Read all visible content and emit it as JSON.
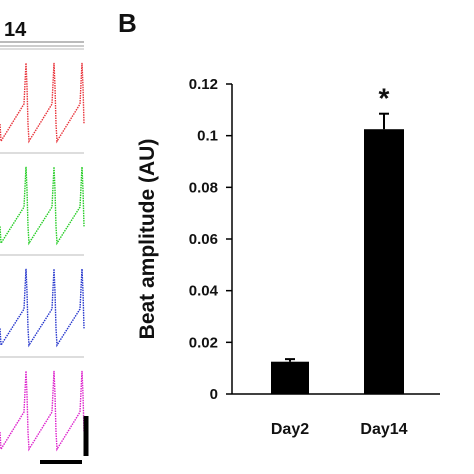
{
  "left_panel": {
    "title_fragment": "14",
    "trace_colors": [
      "#e8333a",
      "#22cc22",
      "#2233cc",
      "#dd22cc"
    ]
  },
  "panel_label": "B",
  "chart_data": {
    "type": "bar",
    "categories": [
      "Day2",
      "Day14"
    ],
    "values": [
      0.0125,
      0.1025
    ],
    "errors": [
      0.001,
      0.006
    ],
    "ylabel": "Beat amplitude (AU)",
    "xlabel": "",
    "ylim": [
      0,
      0.12
    ],
    "yticks": [
      0,
      0.02,
      0.04,
      0.06,
      0.08,
      0.1,
      0.12
    ],
    "ytick_labels": [
      "0",
      "0.02",
      "0.04",
      "0.06",
      "0.08",
      "0.1",
      "0.12"
    ],
    "significance": [
      "",
      "*"
    ],
    "bar_color": "#000000",
    "grid": false
  }
}
